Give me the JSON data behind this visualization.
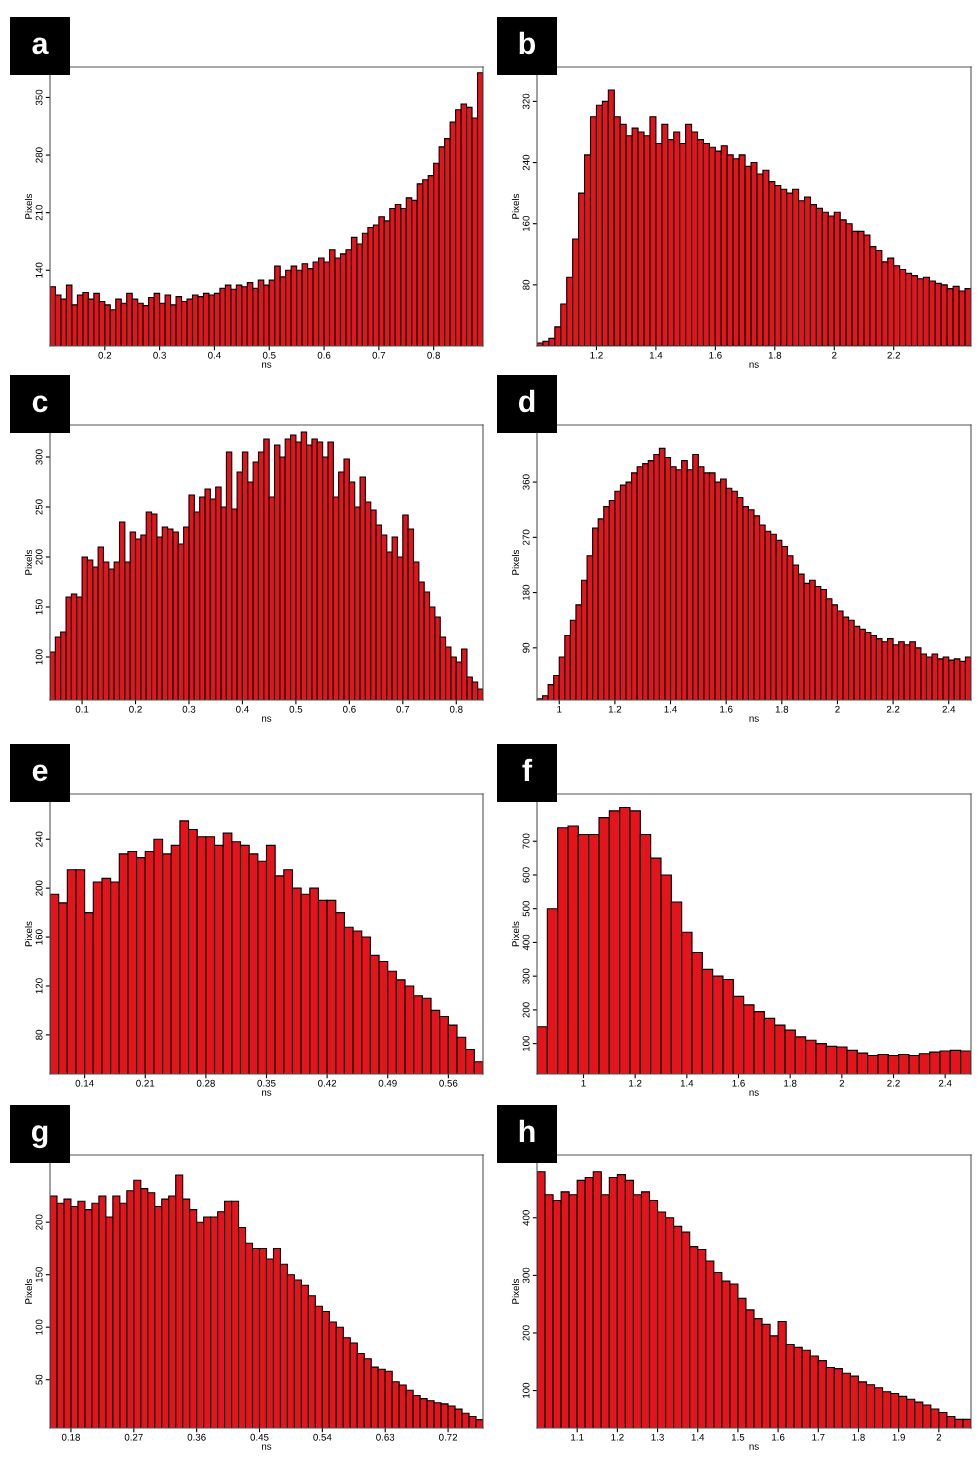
{
  "chart_data": [
    {
      "type": "histogram",
      "title": "a",
      "xlabel": "ns",
      "ylabel": "Pixels",
      "color": "#e3141c",
      "xlim": [
        0.1,
        0.89
      ],
      "ylim": [
        48,
        387
      ],
      "xticks": [
        0.2,
        0.3,
        0.4,
        0.5,
        0.6,
        0.7,
        0.8
      ],
      "yticks": [
        140,
        210,
        280,
        350
      ],
      "bins": [
        0.1,
        0.11,
        0.12,
        0.13,
        0.14,
        0.15,
        0.16,
        0.17,
        0.18,
        0.19,
        0.2,
        0.21,
        0.22,
        0.23,
        0.24,
        0.25,
        0.26,
        0.27,
        0.28,
        0.29,
        0.3,
        0.31,
        0.32,
        0.33,
        0.34,
        0.35,
        0.36,
        0.37,
        0.38,
        0.39,
        0.4,
        0.41,
        0.42,
        0.43,
        0.44,
        0.45,
        0.46,
        0.47,
        0.48,
        0.49,
        0.5,
        0.51,
        0.52,
        0.53,
        0.54,
        0.55,
        0.56,
        0.57,
        0.58,
        0.59,
        0.6,
        0.61,
        0.62,
        0.63,
        0.64,
        0.65,
        0.66,
        0.67,
        0.68,
        0.69,
        0.7,
        0.71,
        0.72,
        0.73,
        0.74,
        0.75,
        0.76,
        0.77,
        0.78,
        0.79,
        0.8,
        0.81,
        0.82,
        0.83,
        0.84,
        0.85,
        0.86,
        0.87,
        0.88,
        0.89
      ],
      "values": [
        120,
        110,
        105,
        122,
        98,
        110,
        113,
        105,
        112,
        102,
        98,
        92,
        105,
        100,
        112,
        105,
        100,
        97,
        107,
        112,
        100,
        110,
        98,
        108,
        102,
        105,
        110,
        108,
        112,
        110,
        112,
        118,
        122,
        117,
        122,
        120,
        125,
        118,
        128,
        122,
        128,
        145,
        132,
        140,
        145,
        140,
        148,
        142,
        150,
        155,
        150,
        165,
        155,
        160,
        165,
        180,
        172,
        185,
        192,
        195,
        205,
        200,
        215,
        220,
        215,
        228,
        225,
        245,
        250,
        255,
        270,
        290,
        300,
        320,
        335,
        342,
        338,
        325,
        380
      ]
    },
    {
      "type": "histogram",
      "title": "b",
      "xlabel": "ns",
      "ylabel": "Pixels",
      "color": "#e3141c",
      "xlim": [
        1.0,
        2.46
      ],
      "ylim": [
        0,
        365
      ],
      "xticks": [
        1.2,
        1.4,
        1.6,
        1.8,
        2,
        2.2
      ],
      "yticks": [
        80,
        160,
        240,
        320
      ],
      "bins": [
        1.0,
        1.02,
        1.04,
        1.06,
        1.08,
        1.1,
        1.12,
        1.14,
        1.16,
        1.18,
        1.2,
        1.22,
        1.24,
        1.26,
        1.28,
        1.3,
        1.32,
        1.34,
        1.36,
        1.38,
        1.4,
        1.42,
        1.44,
        1.46,
        1.48,
        1.5,
        1.52,
        1.54,
        1.56,
        1.58,
        1.6,
        1.62,
        1.64,
        1.66,
        1.68,
        1.7,
        1.72,
        1.74,
        1.76,
        1.78,
        1.8,
        1.82,
        1.84,
        1.86,
        1.88,
        1.9,
        1.92,
        1.94,
        1.96,
        1.98,
        2.0,
        2.02,
        2.04,
        2.06,
        2.08,
        2.1,
        2.12,
        2.14,
        2.16,
        2.18,
        2.2,
        2.22,
        2.24,
        2.26,
        2.28,
        2.3,
        2.32,
        2.34,
        2.36,
        2.38,
        2.4,
        2.42,
        2.44,
        2.46
      ],
      "values": [
        4,
        6,
        10,
        25,
        55,
        90,
        140,
        200,
        250,
        300,
        315,
        320,
        335,
        300,
        290,
        275,
        285,
        280,
        275,
        300,
        265,
        290,
        270,
        280,
        265,
        290,
        280,
        270,
        265,
        260,
        255,
        262,
        250,
        245,
        250,
        235,
        240,
        225,
        230,
        215,
        210,
        205,
        200,
        205,
        190,
        195,
        185,
        180,
        175,
        170,
        175,
        165,
        160,
        150,
        150,
        145,
        130,
        125,
        110,
        115,
        105,
        100,
        95,
        92,
        88,
        90,
        85,
        82,
        80,
        75,
        78,
        72,
        75
      ]
    },
    {
      "type": "histogram",
      "title": "c",
      "xlabel": "ns",
      "ylabel": "Pixels",
      "color": "#e3141c",
      "xlim": [
        0.04,
        0.85
      ],
      "ylim": [
        57,
        332
      ],
      "xticks": [
        0.1,
        0.2,
        0.3,
        0.4,
        0.5,
        0.6,
        0.7,
        0.8
      ],
      "yticks": [
        100,
        150,
        200,
        250,
        300
      ],
      "bins": [
        0.04,
        0.05,
        0.06,
        0.07,
        0.08,
        0.09,
        0.1,
        0.11,
        0.12,
        0.13,
        0.14,
        0.15,
        0.16,
        0.17,
        0.18,
        0.19,
        0.2,
        0.21,
        0.22,
        0.23,
        0.24,
        0.25,
        0.26,
        0.27,
        0.28,
        0.29,
        0.3,
        0.31,
        0.32,
        0.33,
        0.34,
        0.35,
        0.36,
        0.37,
        0.38,
        0.39,
        0.4,
        0.41,
        0.42,
        0.43,
        0.44,
        0.45,
        0.46,
        0.47,
        0.48,
        0.49,
        0.5,
        0.51,
        0.52,
        0.53,
        0.54,
        0.55,
        0.56,
        0.57,
        0.58,
        0.59,
        0.6,
        0.61,
        0.62,
        0.63,
        0.64,
        0.65,
        0.66,
        0.67,
        0.68,
        0.69,
        0.7,
        0.71,
        0.72,
        0.73,
        0.74,
        0.75,
        0.76,
        0.77,
        0.78,
        0.79,
        0.8,
        0.81,
        0.82,
        0.83,
        0.84,
        0.85
      ],
      "values": [
        105,
        120,
        125,
        160,
        163,
        160,
        200,
        197,
        190,
        210,
        195,
        188,
        195,
        235,
        195,
        225,
        218,
        222,
        245,
        243,
        220,
        230,
        228,
        225,
        213,
        230,
        262,
        245,
        260,
        268,
        258,
        270,
        250,
        305,
        248,
        285,
        305,
        275,
        295,
        305,
        318,
        260,
        312,
        300,
        318,
        322,
        315,
        325,
        312,
        318,
        315,
        300,
        315,
        260,
        285,
        298,
        275,
        250,
        280,
        255,
        247,
        232,
        222,
        205,
        220,
        200,
        242,
        228,
        195,
        175,
        165,
        150,
        140,
        120,
        110,
        100,
        95,
        108,
        80,
        75,
        68
      ]
    },
    {
      "type": "histogram",
      "title": "d",
      "xlabel": "ns",
      "ylabel": "Pixels",
      "color": "#e3141c",
      "xlim": [
        0.92,
        2.48
      ],
      "ylim": [
        5,
        453
      ],
      "xticks": [
        1,
        1.2,
        1.4,
        1.6,
        1.8,
        2,
        2.2,
        2.4
      ],
      "yticks": [
        90,
        180,
        270,
        360
      ],
      "bins": [
        0.92,
        0.94,
        0.96,
        0.98,
        1.0,
        1.02,
        1.04,
        1.06,
        1.08,
        1.1,
        1.12,
        1.14,
        1.16,
        1.18,
        1.2,
        1.22,
        1.24,
        1.26,
        1.28,
        1.3,
        1.32,
        1.34,
        1.36,
        1.38,
        1.4,
        1.42,
        1.44,
        1.46,
        1.48,
        1.5,
        1.52,
        1.54,
        1.56,
        1.58,
        1.6,
        1.62,
        1.64,
        1.66,
        1.68,
        1.7,
        1.72,
        1.74,
        1.76,
        1.78,
        1.8,
        1.82,
        1.84,
        1.86,
        1.88,
        1.9,
        1.92,
        1.94,
        1.96,
        1.98,
        2.0,
        2.02,
        2.04,
        2.06,
        2.08,
        2.1,
        2.12,
        2.14,
        2.16,
        2.18,
        2.2,
        2.22,
        2.24,
        2.26,
        2.28,
        2.3,
        2.32,
        2.34,
        2.36,
        2.38,
        2.4,
        2.42,
        2.44,
        2.46,
        2.48
      ],
      "values": [
        7,
        12,
        30,
        45,
        75,
        110,
        135,
        160,
        200,
        240,
        285,
        300,
        320,
        330,
        345,
        355,
        360,
        375,
        385,
        390,
        395,
        405,
        415,
        400,
        385,
        380,
        395,
        380,
        405,
        385,
        375,
        375,
        360,
        365,
        350,
        345,
        335,
        320,
        315,
        305,
        290,
        280,
        275,
        265,
        255,
        240,
        225,
        210,
        195,
        200,
        190,
        185,
        170,
        160,
        150,
        140,
        135,
        125,
        120,
        115,
        110,
        105,
        100,
        105,
        95,
        100,
        95,
        100,
        90,
        80,
        75,
        80,
        72,
        75,
        70,
        72,
        68,
        75
      ]
    },
    {
      "type": "histogram",
      "title": "e",
      "xlabel": "ns",
      "ylabel": "Pixels",
      "color": "#e3141c",
      "xlim": [
        0.1,
        0.6
      ],
      "ylim": [
        48,
        277
      ],
      "xticks": [
        0.14,
        0.21,
        0.28,
        0.35,
        0.42,
        0.49,
        0.56
      ],
      "yticks": [
        80,
        120,
        160,
        200,
        240
      ],
      "bins": [
        0.1,
        0.11,
        0.12,
        0.13,
        0.14,
        0.15,
        0.16,
        0.17,
        0.18,
        0.19,
        0.2,
        0.21,
        0.22,
        0.23,
        0.24,
        0.25,
        0.26,
        0.27,
        0.28,
        0.29,
        0.3,
        0.31,
        0.32,
        0.33,
        0.34,
        0.35,
        0.36,
        0.37,
        0.38,
        0.39,
        0.4,
        0.41,
        0.42,
        0.43,
        0.44,
        0.45,
        0.46,
        0.47,
        0.48,
        0.49,
        0.5,
        0.51,
        0.52,
        0.53,
        0.54,
        0.55,
        0.56,
        0.57,
        0.58,
        0.59,
        0.6
      ],
      "values": [
        195,
        188,
        215,
        215,
        180,
        205,
        208,
        205,
        228,
        230,
        225,
        230,
        240,
        228,
        235,
        255,
        248,
        242,
        242,
        235,
        245,
        238,
        235,
        228,
        222,
        235,
        210,
        215,
        200,
        195,
        200,
        190,
        190,
        180,
        168,
        165,
        160,
        145,
        140,
        132,
        125,
        120,
        112,
        110,
        100,
        95,
        88,
        78,
        68,
        58
      ]
    },
    {
      "type": "histogram",
      "title": "f",
      "xlabel": "ns",
      "ylabel": "Pixels",
      "color": "#e3141c",
      "xlim": [
        0.82,
        2.5
      ],
      "ylim": [
        10,
        840
      ],
      "xticks": [
        1,
        1.2,
        1.4,
        1.6,
        1.8,
        2,
        2.2,
        2.4
      ],
      "yticks": [
        100,
        200,
        300,
        400,
        500,
        600,
        700
      ],
      "bins": [
        0.82,
        0.86,
        0.9,
        0.94,
        0.98,
        1.02,
        1.06,
        1.1,
        1.14,
        1.18,
        1.22,
        1.26,
        1.3,
        1.34,
        1.38,
        1.42,
        1.46,
        1.5,
        1.54,
        1.58,
        1.62,
        1.66,
        1.7,
        1.74,
        1.78,
        1.82,
        1.86,
        1.9,
        1.94,
        1.98,
        2.02,
        2.06,
        2.1,
        2.14,
        2.18,
        2.22,
        2.26,
        2.3,
        2.34,
        2.38,
        2.42,
        2.46,
        2.5
      ],
      "values": [
        150,
        500,
        740,
        745,
        720,
        720,
        770,
        790,
        800,
        790,
        720,
        650,
        600,
        520,
        430,
        370,
        320,
        300,
        290,
        240,
        215,
        195,
        175,
        155,
        140,
        120,
        110,
        100,
        92,
        90,
        80,
        72,
        65,
        68,
        65,
        68,
        65,
        70,
        75,
        78,
        80,
        78
      ]
    },
    {
      "type": "histogram",
      "title": "g",
      "xlabel": "ns",
      "ylabel": "Pixels",
      "color": "#e3141c",
      "xlim": [
        0.15,
        0.77
      ],
      "ylim": [
        4,
        264
      ],
      "xticks": [
        0.18,
        0.27,
        0.36,
        0.45,
        0.54,
        0.63,
        0.72
      ],
      "yticks": [
        50,
        100,
        150,
        200
      ],
      "bins": [
        0.15,
        0.16,
        0.17,
        0.18,
        0.19,
        0.2,
        0.21,
        0.22,
        0.23,
        0.24,
        0.25,
        0.26,
        0.27,
        0.28,
        0.29,
        0.3,
        0.31,
        0.32,
        0.33,
        0.34,
        0.35,
        0.36,
        0.37,
        0.38,
        0.39,
        0.4,
        0.41,
        0.42,
        0.43,
        0.44,
        0.45,
        0.46,
        0.47,
        0.48,
        0.49,
        0.5,
        0.51,
        0.52,
        0.53,
        0.54,
        0.55,
        0.56,
        0.57,
        0.58,
        0.59,
        0.6,
        0.61,
        0.62,
        0.63,
        0.64,
        0.65,
        0.66,
        0.67,
        0.68,
        0.69,
        0.7,
        0.71,
        0.72,
        0.73,
        0.74,
        0.75,
        0.76,
        0.77
      ],
      "values": [
        225,
        218,
        222,
        215,
        220,
        212,
        218,
        225,
        205,
        225,
        218,
        230,
        240,
        232,
        228,
        215,
        222,
        225,
        245,
        222,
        212,
        200,
        205,
        205,
        210,
        220,
        220,
        195,
        180,
        175,
        175,
        165,
        175,
        160,
        150,
        145,
        140,
        130,
        120,
        115,
        105,
        100,
        90,
        85,
        75,
        70,
        62,
        60,
        58,
        48,
        45,
        40,
        35,
        32,
        30,
        28,
        27,
        25,
        22,
        18,
        15,
        12
      ]
    },
    {
      "type": "histogram",
      "title": "h",
      "xlabel": "ns",
      "ylabel": "Pixels",
      "color": "#e3141c",
      "xlim": [
        1.0,
        2.08
      ],
      "ylim": [
        35,
        509
      ],
      "xticks": [
        1.1,
        1.2,
        1.3,
        1.4,
        1.5,
        1.6,
        1.7,
        1.8,
        1.9,
        2
      ],
      "yticks": [
        100,
        200,
        300,
        400
      ],
      "bins": [
        1.0,
        1.02,
        1.04,
        1.06,
        1.08,
        1.1,
        1.12,
        1.14,
        1.16,
        1.18,
        1.2,
        1.22,
        1.24,
        1.26,
        1.28,
        1.3,
        1.32,
        1.34,
        1.36,
        1.38,
        1.4,
        1.42,
        1.44,
        1.46,
        1.48,
        1.5,
        1.52,
        1.54,
        1.56,
        1.58,
        1.6,
        1.62,
        1.64,
        1.66,
        1.68,
        1.7,
        1.72,
        1.74,
        1.76,
        1.78,
        1.8,
        1.82,
        1.84,
        1.86,
        1.88,
        1.9,
        1.92,
        1.94,
        1.96,
        1.98,
        2.0,
        2.02,
        2.04,
        2.06,
        2.08
      ],
      "values": [
        480,
        440,
        430,
        445,
        440,
        465,
        470,
        480,
        440,
        470,
        475,
        465,
        440,
        445,
        430,
        410,
        400,
        385,
        375,
        350,
        345,
        325,
        305,
        290,
        285,
        260,
        240,
        225,
        215,
        195,
        220,
        180,
        175,
        170,
        160,
        152,
        140,
        138,
        130,
        125,
        115,
        110,
        105,
        98,
        95,
        90,
        85,
        80,
        75,
        68,
        62,
        55,
        50,
        50
      ]
    }
  ]
}
